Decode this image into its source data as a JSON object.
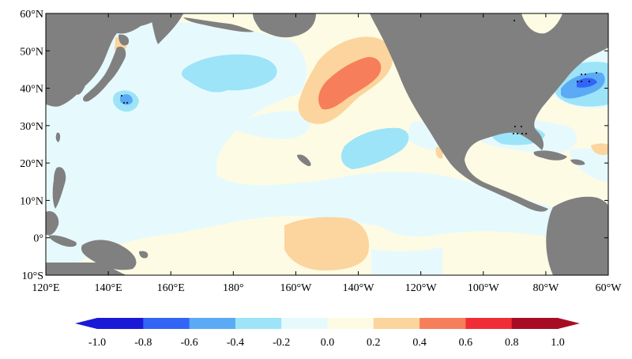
{
  "map": {
    "lat_ticks": [
      "60°N",
      "50°N",
      "40°N",
      "30°N",
      "20°N",
      "10°N",
      "0°",
      "10°S"
    ],
    "lon_ticks": [
      "120°E",
      "140°E",
      "160°E",
      "180°",
      "160°W",
      "140°W",
      "120°W",
      "100°W",
      "80°W",
      "60°W"
    ],
    "extent": {
      "lon": [
        120,
        300
      ],
      "lat": [
        -10,
        60
      ]
    },
    "land_color": "#808080",
    "ocean_background": "#fdfbe4"
  },
  "colorbar": {
    "tick_labels": [
      "-1.0",
      "-0.8",
      "-0.6",
      "-0.4",
      "-0.2",
      "0.0",
      "0.2",
      "0.4",
      "0.6",
      "0.8",
      "1.0"
    ],
    "colors": [
      "#1a1ad6",
      "#3264f5",
      "#5aaaf5",
      "#9de4f8",
      "#e6fafd",
      "#fdfbe4",
      "#fbd59d",
      "#f77e5a",
      "#f02d37",
      "#a80c25"
    ]
  }
}
